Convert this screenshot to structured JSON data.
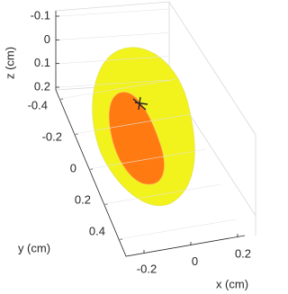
{
  "chart_data": {
    "type": "surface3d",
    "x_label": "x (cm)",
    "y_label": "y (cm)",
    "z_label": "z (cm)",
    "xlim": [
      -0.2,
      0.2
    ],
    "xticks": [
      -0.2,
      0,
      0.2
    ],
    "ylim": [
      -0.4,
      0.4
    ],
    "yticks": [
      -0.4,
      -0.2,
      0,
      0.2,
      0.4
    ],
    "zlim": [
      -0.1,
      0.2
    ],
    "zticks": [
      -0.1,
      0,
      0.1,
      0.2
    ],
    "grid": true
  }
}
